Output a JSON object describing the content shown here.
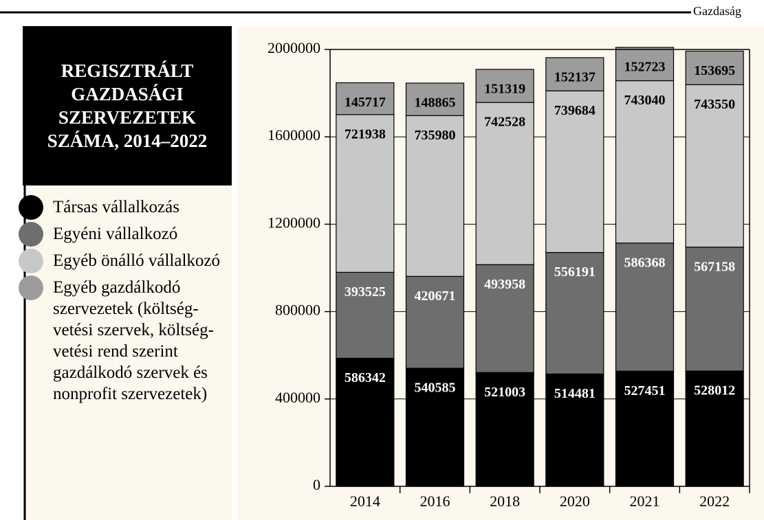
{
  "section": "Gazdaság",
  "chart_data": {
    "type": "stacked_bar",
    "title": "REGISZTRÁLT GAZDASÁGI SZERVEZETEK SZÁMA, 2014–2022",
    "categories": [
      "2014",
      "2016",
      "2018",
      "2020",
      "2021",
      "2022"
    ],
    "series": [
      {
        "name": "Társas vállalkozás",
        "color": "#000000",
        "values": [
          586342,
          540585,
          521003,
          514481,
          527451,
          528012
        ]
      },
      {
        "name": "Egyéni vállalkozó",
        "color": "#6e6e6e",
        "values": [
          393525,
          420671,
          493958,
          556191,
          586368,
          567158
        ]
      },
      {
        "name": "Egyéb önálló vállalkozó",
        "color": "#c8c8c8",
        "values": [
          721938,
          735980,
          742528,
          739684,
          743040,
          743550
        ]
      },
      {
        "name": "Egyéb gazdálkodó szervezetek (költség­vetési szervek, költség­vetési rend szerint gazdálkodó szer­vek és nonprofit szervezetek)",
        "color": "#9c9c9c",
        "values": [
          145717,
          148865,
          151319,
          152137,
          152723,
          153695
        ]
      }
    ],
    "ylim": [
      0,
      2000000
    ],
    "yticks": [
      0,
      400000,
      800000,
      1200000,
      1600000,
      2000000
    ],
    "grid": true
  }
}
